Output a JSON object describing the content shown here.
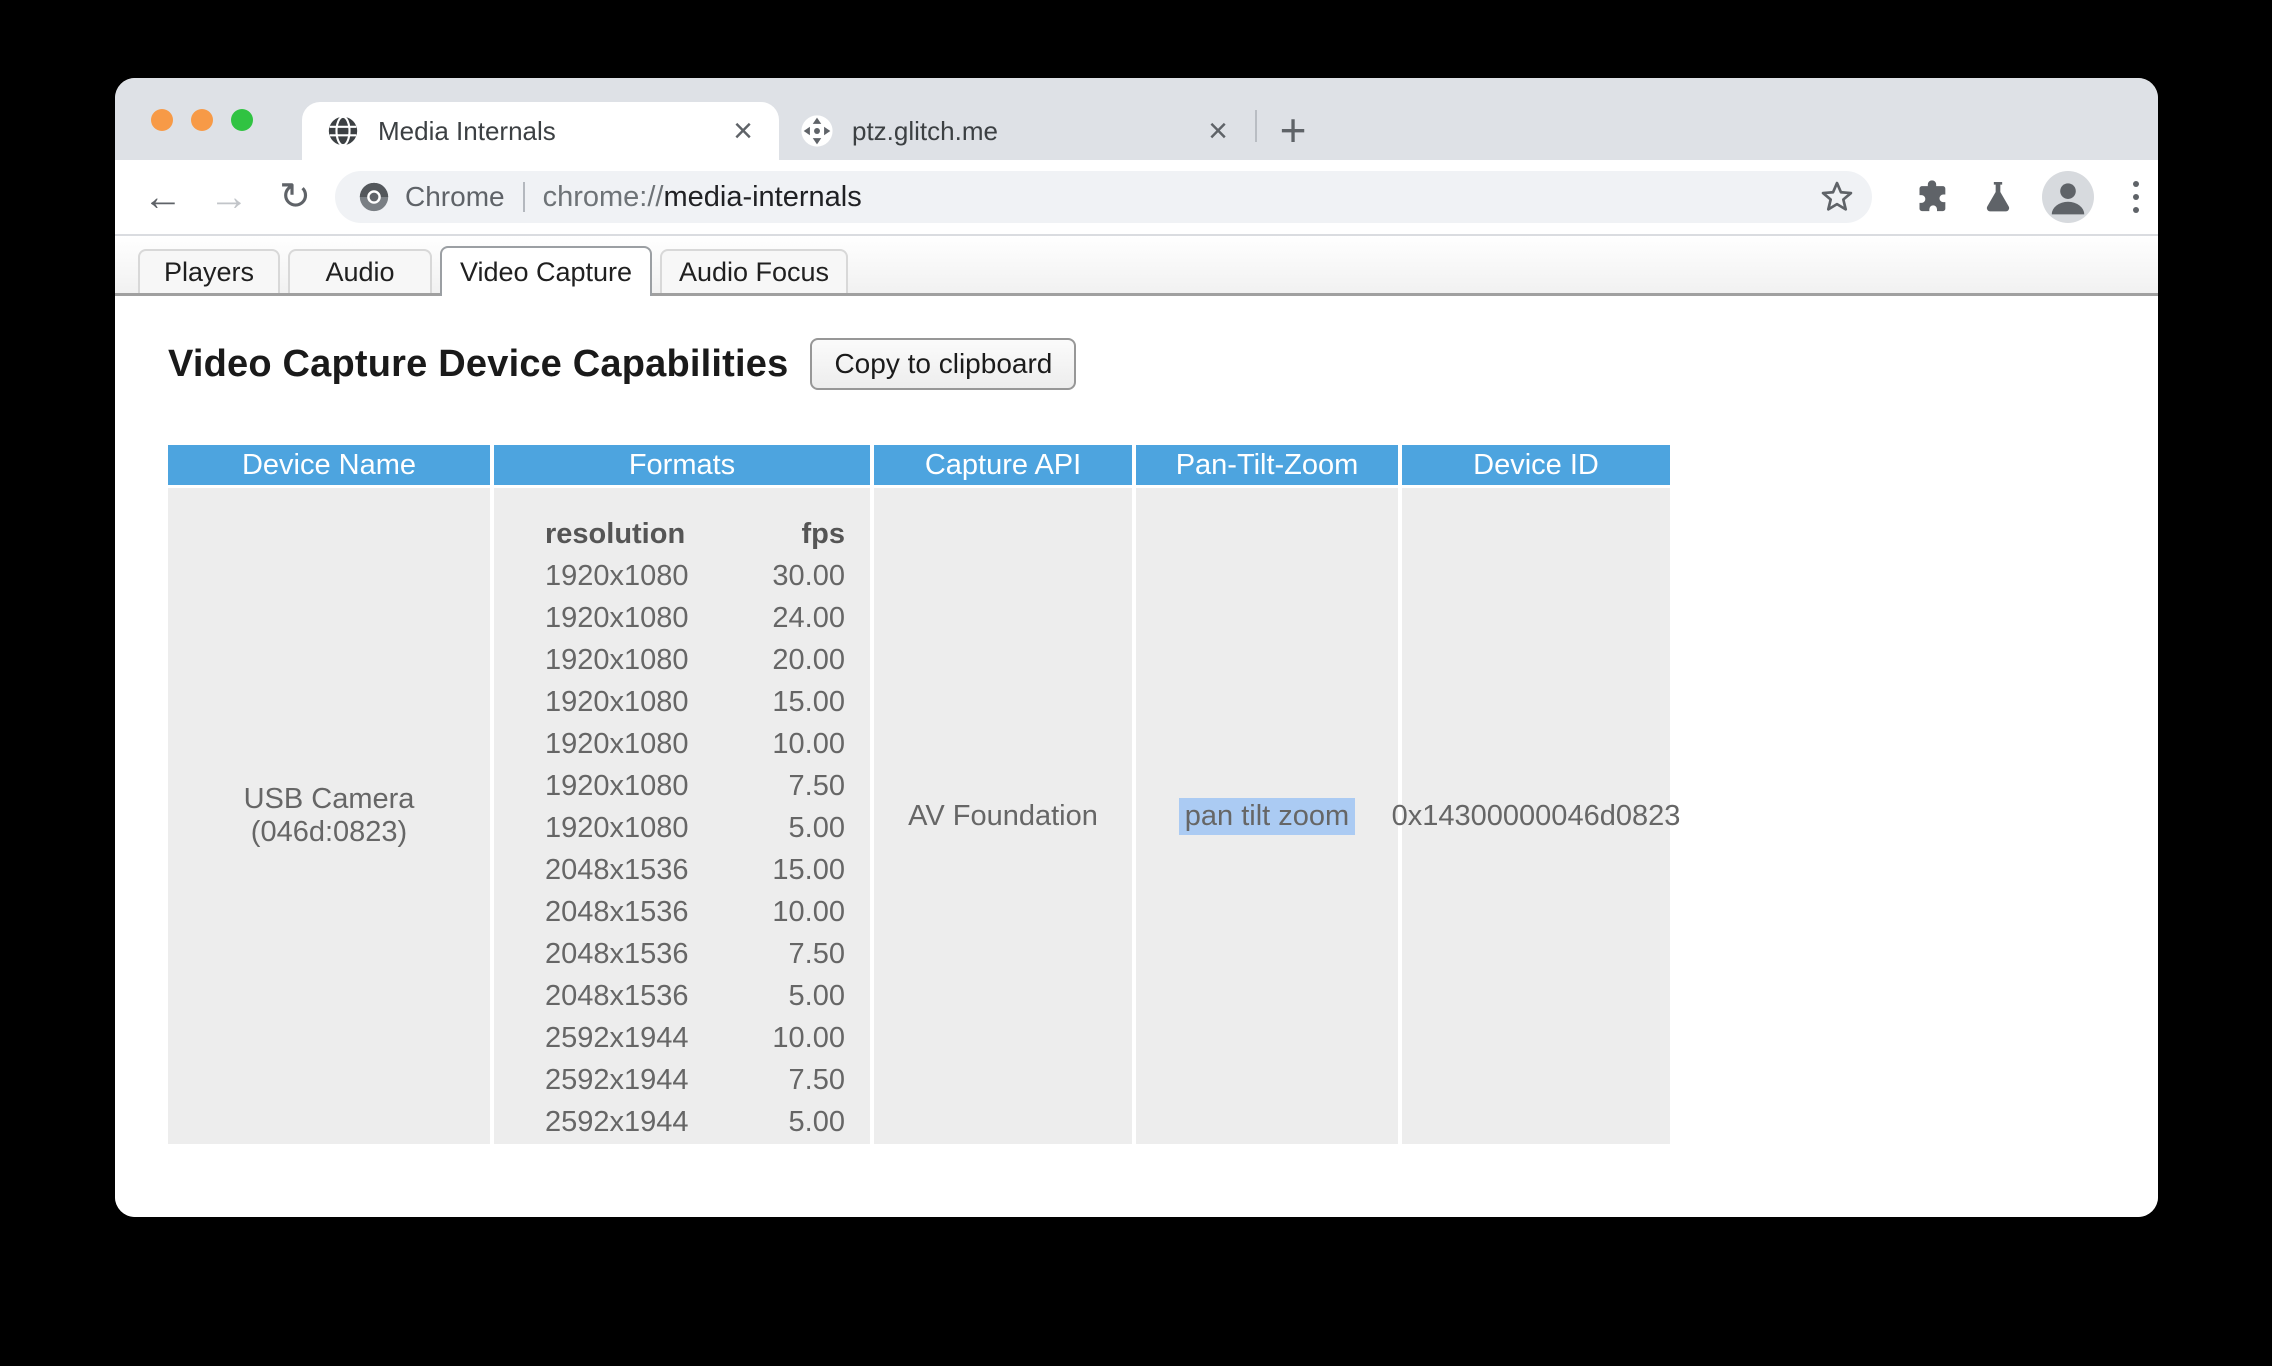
{
  "browser": {
    "window_controls": [
      {
        "name": "close-window-button"
      },
      {
        "name": "minimize-window-button"
      },
      {
        "name": "zoom-window-button"
      }
    ],
    "tabs": [
      {
        "title": "Media Internals",
        "favicon": "globe-icon",
        "active": true
      },
      {
        "title": "ptz.glitch.me",
        "favicon": "pan-tilt-zoom-icon",
        "active": false
      }
    ],
    "icons": {
      "back": "←",
      "forward": "→",
      "reload": "↻",
      "tab_close": "×",
      "new_tab": "+"
    },
    "toolbar": {
      "site_chip": "Chrome",
      "url_scheme": "chrome://",
      "url_host": "media-internals"
    }
  },
  "page": {
    "subtabs": [
      {
        "label": "Players",
        "active": false
      },
      {
        "label": "Audio",
        "active": false
      },
      {
        "label": "Video Capture",
        "active": true
      },
      {
        "label": "Audio Focus",
        "active": false
      }
    ],
    "heading": "Video Capture Device Capabilities",
    "copy_button": "Copy to clipboard",
    "table": {
      "headers": [
        "Device Name",
        "Formats",
        "Capture API",
        "Pan-Tilt-Zoom",
        "Device ID"
      ],
      "formats_columns": [
        "resolution",
        "fps"
      ],
      "device": {
        "name": "USB Camera (046d:0823)",
        "capture_api": "AV Foundation",
        "pan_tilt_zoom": "pan tilt zoom",
        "device_id": "0x14300000046d0823",
        "formats": [
          [
            "1920x1080",
            "30.00"
          ],
          [
            "1920x1080",
            "24.00"
          ],
          [
            "1920x1080",
            "20.00"
          ],
          [
            "1920x1080",
            "15.00"
          ],
          [
            "1920x1080",
            "10.00"
          ],
          [
            "1920x1080",
            "7.50"
          ],
          [
            "1920x1080",
            "5.00"
          ],
          [
            "2048x1536",
            "15.00"
          ],
          [
            "2048x1536",
            "10.00"
          ],
          [
            "2048x1536",
            "7.50"
          ],
          [
            "2048x1536",
            "5.00"
          ],
          [
            "2592x1944",
            "10.00"
          ],
          [
            "2592x1944",
            "7.50"
          ],
          [
            "2592x1944",
            "5.00"
          ]
        ]
      }
    }
  },
  "colors": {
    "header_blue": "#4DA4DF",
    "cell_gray": "#EDEDED",
    "selection_highlight": "#ABCBF3",
    "traffic_orange": "#F79A47",
    "traffic_green": "#30C342"
  }
}
